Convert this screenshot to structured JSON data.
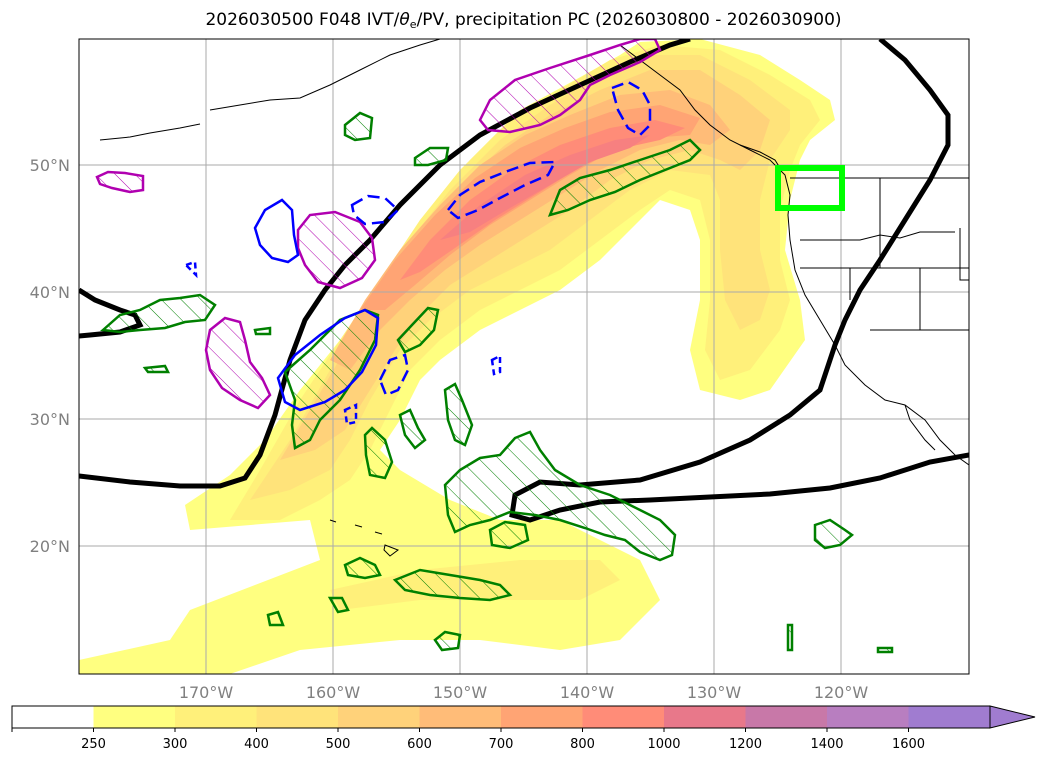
{
  "figure": {
    "title_prefix": "2026030500 F048 IVT/",
    "title_theta": "θ",
    "title_theta_sub": "e",
    "title_suffix": "/PV, precipitation PC (2026030800 - 2026030900)"
  },
  "map": {
    "lon_range": [
      -180,
      -110
    ],
    "lat_range": [
      10,
      60
    ],
    "lat_ticks": [
      {
        "value": 50,
        "label": "50°N"
      },
      {
        "value": 40,
        "label": "40°N"
      },
      {
        "value": 30,
        "label": "30°N"
      },
      {
        "value": 20,
        "label": "20°N"
      }
    ],
    "lon_ticks": [
      {
        "value": -170,
        "label": "170°W"
      },
      {
        "value": -160,
        "label": "160°W"
      },
      {
        "value": -150,
        "label": "150°W"
      },
      {
        "value": -140,
        "label": "140°W"
      },
      {
        "value": -130,
        "label": "130°W"
      },
      {
        "value": -120,
        "label": "120°W"
      }
    ],
    "highlight_box": {
      "lon": [
        -125,
        -120
      ],
      "lat": [
        47,
        50
      ],
      "color": "#00ff00"
    }
  },
  "colorbar": {
    "levels": [
      "250",
      "300",
      "400",
      "500",
      "600",
      "700",
      "800",
      "1000",
      "1200",
      "1400",
      "1600"
    ],
    "colors": [
      "#ffffff",
      "#ffff80",
      "#fff07a",
      "#ffe37a",
      "#ffd27a",
      "#ffbc78",
      "#ffa474",
      "#ff8c78",
      "#e8788a",
      "#c878a8",
      "#b87ec0",
      "#a07cd0"
    ]
  },
  "legend_colors": {
    "thick_contour": "#000000",
    "magenta_contour": "#b000b0",
    "blue_contour": "#0000ff",
    "green_contour": "#008000"
  }
}
